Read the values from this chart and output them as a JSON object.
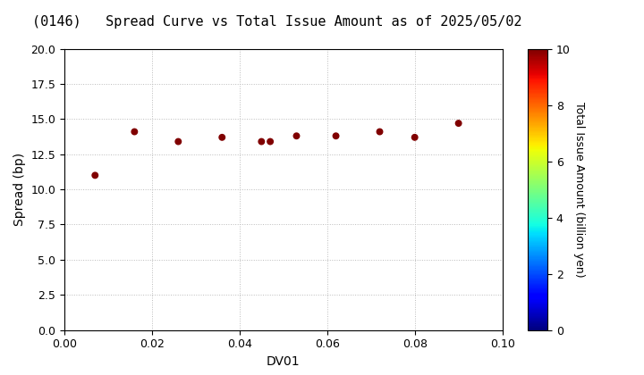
{
  "title": "(0146)   Spread Curve vs Total Issue Amount as of 2025/05/02",
  "xlabel": "DV01",
  "ylabel": "Spread (bp)",
  "colorbar_label": "Total Issue Amount (billion yen)",
  "xlim": [
    0.0,
    0.1
  ],
  "ylim": [
    0.0,
    20.0
  ],
  "xticks": [
    0.0,
    0.02,
    0.04,
    0.06,
    0.08,
    0.1
  ],
  "yticks": [
    0.0,
    2.5,
    5.0,
    7.5,
    10.0,
    12.5,
    15.0,
    17.5,
    20.0
  ],
  "clim": [
    0,
    10
  ],
  "cticks": [
    0,
    2,
    4,
    6,
    8,
    10
  ],
  "scatter_x": [
    0.007,
    0.016,
    0.026,
    0.036,
    0.045,
    0.047,
    0.053,
    0.062,
    0.072,
    0.08,
    0.09
  ],
  "scatter_y": [
    11.0,
    14.1,
    13.4,
    13.7,
    13.4,
    13.4,
    13.8,
    13.8,
    14.1,
    13.7,
    14.7
  ],
  "scatter_c": [
    10,
    10,
    10,
    10,
    10,
    10,
    10,
    10,
    10,
    10,
    10
  ],
  "marker_size": 22,
  "background_color": "#ffffff",
  "grid_color": "#bbbbbb",
  "title_fontsize": 11,
  "axis_fontsize": 10,
  "tick_fontsize": 9,
  "colorbar_fontsize": 9
}
